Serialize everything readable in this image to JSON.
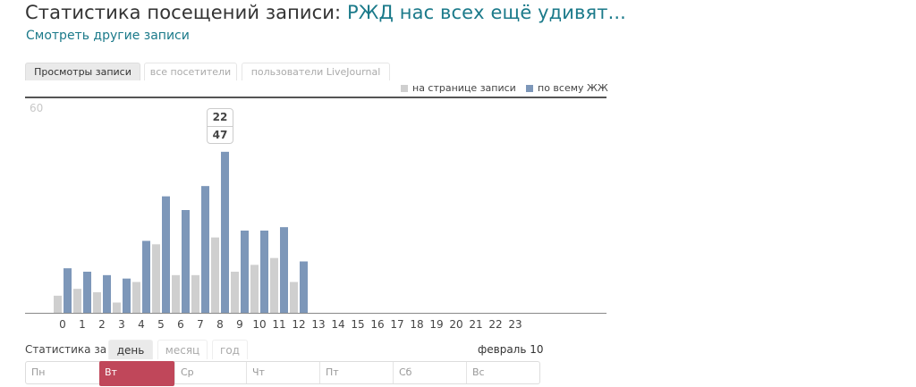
{
  "header": {
    "title_prefix": "Статистика посещений записи: ",
    "post_title": "РЖД нас всех ещё удивят...",
    "other_posts_link": "Смотреть другие записи"
  },
  "tabs": [
    {
      "label": "Просмотры записи",
      "active": true
    },
    {
      "label": "все посетители",
      "active": false
    },
    {
      "label": "пользователи LiveJournal",
      "active": false
    }
  ],
  "legend": {
    "page": "на странице записи",
    "all": "по всему ЖЖ"
  },
  "colors": {
    "page": "#cfcfcf",
    "all": "#7d97b9",
    "accent_link": "#1b7a8a",
    "selected_day": "#c0475a"
  },
  "chart_data": {
    "type": "bar",
    "ymax_label": "60",
    "ylim": [
      0,
      60
    ],
    "categories": [
      "0",
      "1",
      "2",
      "3",
      "4",
      "5",
      "6",
      "7",
      "8",
      "9",
      "10",
      "11",
      "12",
      "13",
      "14",
      "15",
      "16",
      "17",
      "18",
      "19",
      "20",
      "21",
      "22",
      "23"
    ],
    "series": [
      {
        "name": "на странице записи",
        "values": [
          5,
          7,
          6,
          3,
          9,
          20,
          11,
          11,
          22,
          12,
          14,
          16,
          9,
          0,
          0,
          0,
          0,
          0,
          0,
          0,
          0,
          0,
          0,
          0
        ]
      },
      {
        "name": "по всему ЖЖ",
        "values": [
          13,
          12,
          11,
          10,
          21,
          34,
          30,
          37,
          47,
          24,
          24,
          25,
          15,
          0,
          0,
          0,
          0,
          0,
          0,
          0,
          0,
          0,
          0,
          0
        ]
      }
    ],
    "highlight_index": 8
  },
  "tooltip": {
    "page_value": "22",
    "all_value": "47"
  },
  "period": {
    "label": "Статистика за",
    "options": [
      {
        "label": "день",
        "active": true
      },
      {
        "label": "месяц",
        "active": false
      },
      {
        "label": "год",
        "active": false
      }
    ],
    "date": "февраль 10"
  },
  "weekdays": [
    {
      "label": "Пн",
      "active": false
    },
    {
      "label": "Вт",
      "active": true
    },
    {
      "label": "Ср",
      "active": false
    },
    {
      "label": "Чт",
      "active": false
    },
    {
      "label": "Пт",
      "active": false
    },
    {
      "label": "Сб",
      "active": false
    },
    {
      "label": "Вс",
      "active": false
    }
  ]
}
